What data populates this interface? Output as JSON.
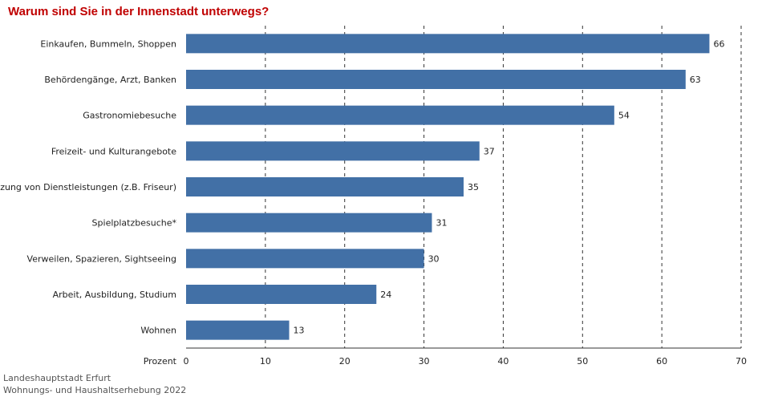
{
  "colors": {
    "title": "#c00000",
    "bar": "#4270a6",
    "grid": "#333333"
  },
  "chart_data": {
    "type": "bar",
    "orientation": "horizontal",
    "title": "Warum sind Sie in der Innenstadt unterwegs?",
    "xlabel": "Prozent",
    "xlim": [
      0,
      70
    ],
    "xticks": [
      0,
      10,
      20,
      30,
      40,
      50,
      60,
      70
    ],
    "grid": "vertical dashed",
    "categories": [
      "Einkaufen, Bummeln, Shoppen",
      "Behördengänge, Arzt, Banken",
      "Gastronomiebesuche",
      "Freizeit- und Kulturangebote",
      "Nutzung von Dienstleistungen (z.B. Friseur)",
      "Spielplatzbesuche*",
      "Verweilen, Spazieren, Sightseeing",
      "Arbeit, Ausbildung, Studium",
      "Wohnen"
    ],
    "values": [
      66,
      63,
      54,
      37,
      35,
      31,
      30,
      24,
      13
    ]
  },
  "source": {
    "line1": "Landeshauptstadt Erfurt",
    "line2": "Wohnungs- und Haushaltserhebung 2022"
  }
}
